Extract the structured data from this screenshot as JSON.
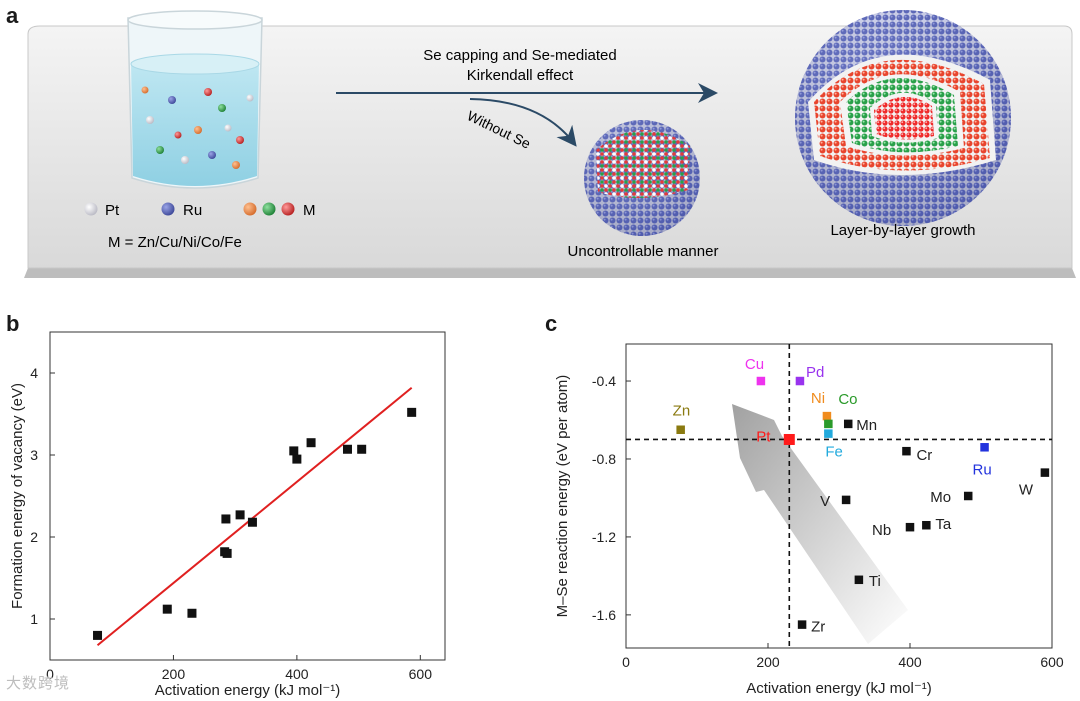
{
  "panels": {
    "a": {
      "label": "a"
    },
    "b": {
      "label": "b"
    },
    "c": {
      "label": "c"
    }
  },
  "panel_a": {
    "arrow_top_line1": "Se capping and Se-mediated",
    "arrow_top_line2": "Kirkendall effect",
    "arrow_without": "Without Se",
    "legend_pt": "Pt",
    "legend_ru": "Ru",
    "legend_m": "M",
    "legend_m_def": "M = Zn/Cu/Ni/Co/Fe",
    "caption_uncontrolled": "Uncontrollable manner",
    "caption_layer": "Layer-by-layer growth",
    "colors": {
      "pt": "#e8e8ee",
      "ru": "#5a66b8",
      "m1": "#ef8a4a",
      "m2": "#2ea24a",
      "m3": "#e23b3b"
    }
  },
  "watermark": "大数跨境",
  "chart_data": [
    {
      "type": "scatter",
      "panel": "b",
      "xlabel": "Activation energy (kJ mol⁻¹)",
      "ylabel": "Formation energy of vacancy (eV)",
      "xlim": [
        0,
        640
      ],
      "ylim": [
        0.5,
        4.5
      ],
      "xticks": [
        0,
        200,
        400,
        600
      ],
      "yticks": [
        1,
        2,
        3,
        4
      ],
      "grid": false,
      "points": [
        {
          "x": 77,
          "y": 0.8
        },
        {
          "x": 190,
          "y": 1.12
        },
        {
          "x": 230,
          "y": 1.07
        },
        {
          "x": 283,
          "y": 1.82
        },
        {
          "x": 285,
          "y": 2.22
        },
        {
          "x": 287,
          "y": 1.8
        },
        {
          "x": 308,
          "y": 2.27
        },
        {
          "x": 328,
          "y": 2.18
        },
        {
          "x": 395,
          "y": 3.05
        },
        {
          "x": 400,
          "y": 2.95
        },
        {
          "x": 423,
          "y": 3.15
        },
        {
          "x": 482,
          "y": 3.07
        },
        {
          "x": 505,
          "y": 3.07
        },
        {
          "x": 586,
          "y": 3.52
        }
      ],
      "fit_line": {
        "x": [
          77,
          586
        ],
        "y": [
          0.68,
          3.82
        ],
        "color": "#e02020"
      }
    },
    {
      "type": "scatter",
      "panel": "c",
      "xlabel": "Activation energy (kJ mol⁻¹)",
      "ylabel": "M–Se reaction energy (eV per atom)",
      "xlim": [
        0,
        600
      ],
      "ylim": [
        -1.77,
        -0.21
      ],
      "xticks": [
        0,
        200,
        400,
        600
      ],
      "yticks": [
        -0.4,
        -0.8,
        -1.2,
        -1.6
      ],
      "ytick_labels": [
        "-0.4",
        "-0.8",
        "-1.2",
        "-1.6"
      ],
      "grid": false,
      "reference_lines": {
        "x": 230,
        "y": -0.7
      },
      "points": [
        {
          "label": "Cu",
          "x": 190,
          "y": -0.4,
          "color": "#ee33ee"
        },
        {
          "label": "Pd",
          "x": 245,
          "y": -0.4,
          "color": "#9933ee"
        },
        {
          "label": "Zn",
          "x": 77,
          "y": -0.65,
          "color": "#8a7a10"
        },
        {
          "label": "Ni",
          "x": 283,
          "y": -0.58,
          "color": "#f08c1e"
        },
        {
          "label": "Co",
          "x": 285,
          "y": -0.62,
          "color": "#2a9a2a"
        },
        {
          "label": "Mn",
          "x": 313,
          "y": -0.62,
          "color": "#111111"
        },
        {
          "label": "Pt",
          "x": 230,
          "y": -0.7,
          "color": "#ff1a1a"
        },
        {
          "label": "Fe",
          "x": 285,
          "y": -0.67,
          "color": "#22aadd"
        },
        {
          "label": "Ru",
          "x": 505,
          "y": -0.74,
          "color": "#2233dd"
        },
        {
          "label": "Cr",
          "x": 395,
          "y": -0.76,
          "color": "#111111"
        },
        {
          "label": "W",
          "x": 590,
          "y": -0.87,
          "color": "#111111"
        },
        {
          "label": "Mo",
          "x": 482,
          "y": -0.99,
          "color": "#111111"
        },
        {
          "label": "V",
          "x": 310,
          "y": -1.01,
          "color": "#111111"
        },
        {
          "label": "Nb",
          "x": 400,
          "y": -1.15,
          "color": "#111111"
        },
        {
          "label": "Ta",
          "x": 423,
          "y": -1.14,
          "color": "#111111"
        },
        {
          "label": "Ti",
          "x": 328,
          "y": -1.42,
          "color": "#111111"
        },
        {
          "label": "Zr",
          "x": 248,
          "y": -1.65,
          "color": "#111111"
        }
      ]
    }
  ]
}
